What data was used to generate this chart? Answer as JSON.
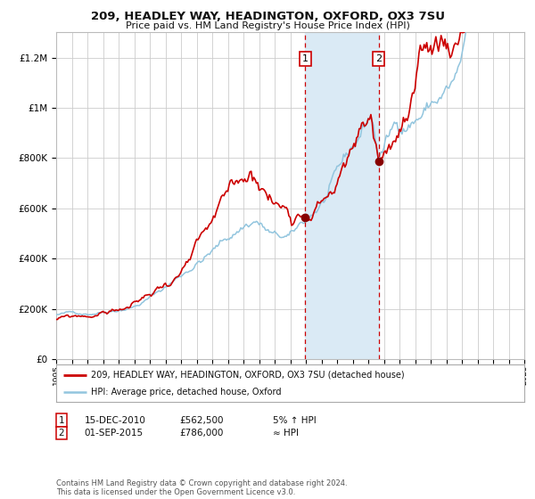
{
  "title1": "209, HEADLEY WAY, HEADINGTON, OXFORD, OX3 7SU",
  "title2": "Price paid vs. HM Land Registry's House Price Index (HPI)",
  "legend_line1": "209, HEADLEY WAY, HEADINGTON, OXFORD, OX3 7SU (detached house)",
  "legend_line2": "HPI: Average price, detached house, Oxford",
  "annotation1_label": "1",
  "annotation1_date": "15-DEC-2010",
  "annotation1_price": "£562,500",
  "annotation1_note": "5% ↑ HPI",
  "annotation2_label": "2",
  "annotation2_date": "01-SEP-2015",
  "annotation2_price": "£786,000",
  "annotation2_note": "≈ HPI",
  "footnote": "Contains HM Land Registry data © Crown copyright and database right 2024.\nThis data is licensed under the Open Government Licence v3.0.",
  "sale1_year": 2010.958,
  "sale1_value": 562500,
  "sale2_year": 2015.667,
  "sale2_value": 786000,
  "hpi_line_color": "#92c5de",
  "price_line_color": "#cc0000",
  "dot_color": "#880000",
  "shade_color": "#daeaf5",
  "vline_color": "#cc0000",
  "background_color": "#ffffff",
  "grid_color": "#cccccc",
  "xmin": 1995,
  "xmax": 2025,
  "ymin": 0,
  "ymax": 1300000,
  "yticks": [
    0,
    200000,
    400000,
    600000,
    800000,
    1000000,
    1200000
  ]
}
